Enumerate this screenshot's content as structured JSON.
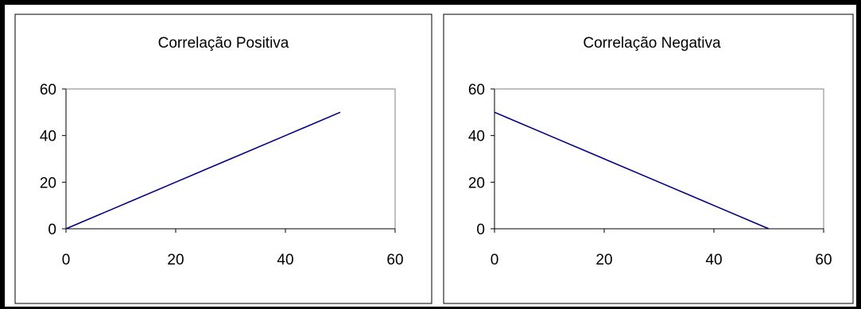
{
  "chart_data": [
    {
      "type": "line",
      "title": "Correlação Positiva",
      "xlabel": "",
      "ylabel": "",
      "xlim": [
        0,
        60
      ],
      "ylim": [
        0,
        60
      ],
      "xticks": [
        "0",
        "20",
        "40",
        "60"
      ],
      "yticks": [
        "0",
        "20",
        "40",
        "60"
      ],
      "grid": false,
      "legend": "none",
      "line_color": "#000080",
      "series": [
        {
          "points": [
            [
              0,
              0
            ],
            [
              10,
              10
            ],
            [
              20,
              20
            ],
            [
              30,
              30
            ],
            [
              40,
              40
            ],
            [
              50,
              50
            ]
          ]
        }
      ]
    },
    {
      "type": "line",
      "title": "Correlação Negativa",
      "xlabel": "",
      "ylabel": "",
      "xlim": [
        0,
        60
      ],
      "ylim": [
        0,
        60
      ],
      "xticks": [
        "0",
        "20",
        "40",
        "60"
      ],
      "yticks": [
        "0",
        "20",
        "40",
        "60"
      ],
      "grid": false,
      "legend": "none",
      "line_color": "#000080",
      "series": [
        {
          "points": [
            [
              0,
              50
            ],
            [
              10,
              40
            ],
            [
              20,
              30
            ],
            [
              30,
              20
            ],
            [
              40,
              10
            ],
            [
              50,
              0
            ]
          ]
        }
      ]
    }
  ]
}
